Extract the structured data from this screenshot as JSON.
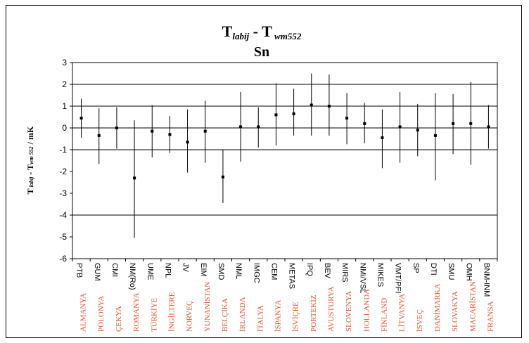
{
  "chart_data": {
    "type": "scatter",
    "title": {
      "T": "T",
      "labij": "labij",
      "dash": " - ",
      "T2": "T",
      "wm": " wm552"
    },
    "subtitle": "Sn",
    "ylabel": {
      "T": "T",
      "labij": " labij",
      "dash": " - T",
      "wm": "wm 552",
      "unit": " / mK"
    },
    "ylim": [
      -6,
      3
    ],
    "yticks": [
      3,
      2,
      1,
      0,
      -1,
      -2,
      -3,
      -4,
      -5,
      -6
    ],
    "gridlines": [
      2,
      1,
      -1,
      -4
    ],
    "labs": [
      "PTB",
      "GUM",
      "CMI",
      "NM(Ro)",
      "UME",
      "NPL",
      "JV",
      "EIM",
      "SMD",
      "NML",
      "IMGC",
      "CEM",
      "METAS",
      "IPQ",
      "BEV",
      "MIRS",
      "NMi/VSL",
      "MIKES",
      "VMT/PFI",
      "SP",
      "DTI",
      "SMU",
      "OMH",
      "BNM-INM"
    ],
    "countries": [
      "ALMANYA",
      "POLONYA",
      "ÇEKYA",
      "ROMANYA",
      "TÜRKİYE",
      "İNGİLTERE",
      "NORVEÇ",
      "YUNANİSTAN",
      "BELÇİKA",
      "İRLANDA",
      "İTALYA",
      "İSPANYA",
      "İSVİÇRE",
      "PORTEKİZ",
      "AVUSTURYA",
      "SLOVENYA",
      "HOLLANDA",
      "FİNLAND",
      "LİTVANYA",
      "İSVEÇ",
      "DANİMARKA",
      "SLOVAKYA",
      "MACARİSTAN",
      "FRANSA"
    ],
    "values": [
      0.45,
      -0.35,
      0.0,
      -2.3,
      -0.15,
      -0.3,
      -0.65,
      -0.15,
      -2.25,
      0.05,
      0.05,
      0.6,
      0.65,
      1.05,
      1.0,
      0.45,
      0.2,
      -0.45,
      0.05,
      -0.1,
      -0.35,
      0.2,
      0.2,
      0.05
    ],
    "err_low": [
      -0.45,
      -1.65,
      -0.95,
      -5.05,
      -1.35,
      -1.15,
      -2.05,
      -1.6,
      -3.45,
      -1.55,
      -0.9,
      -0.8,
      -0.35,
      -0.35,
      -0.35,
      -0.75,
      -0.7,
      -1.85,
      -1.6,
      -1.3,
      -2.4,
      -1.2,
      -1.7,
      -0.95
    ],
    "err_high": [
      1.35,
      0.9,
      0.95,
      0.35,
      1.05,
      0.55,
      0.85,
      1.25,
      -1.0,
      1.65,
      0.95,
      2.05,
      1.8,
      2.5,
      2.45,
      1.6,
      1.15,
      0.85,
      1.65,
      1.1,
      1.6,
      1.55,
      2.1,
      1.05
    ]
  }
}
